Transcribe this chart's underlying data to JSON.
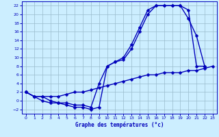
{
  "line1_x": [
    0,
    1,
    2,
    3,
    4,
    5,
    6,
    7,
    8,
    9,
    10,
    11,
    12,
    13,
    14,
    15,
    16,
    17,
    18,
    19,
    20,
    21,
    22,
    23
  ],
  "line1_y": [
    2,
    1,
    0,
    -0.5,
    -0.5,
    -1,
    -1.5,
    -1.5,
    -2,
    -1.5,
    8,
    9,
    10,
    13,
    17,
    21,
    22,
    22,
    22,
    22,
    21,
    8,
    8,
    null
  ],
  "line2_x": [
    0,
    1,
    2,
    3,
    4,
    5,
    6,
    7,
    8,
    9,
    10,
    11,
    12,
    13,
    14,
    15,
    16,
    17,
    18,
    19,
    20,
    21,
    22,
    23
  ],
  "line2_y": [
    2,
    1,
    1,
    0,
    -0.5,
    -0.5,
    -1,
    -1,
    -1.5,
    4,
    8,
    9,
    9.5,
    12,
    16,
    20,
    22,
    22,
    22,
    22,
    19,
    15,
    8,
    null
  ],
  "line3_x": [
    0,
    1,
    2,
    3,
    4,
    5,
    6,
    7,
    8,
    9,
    10,
    11,
    12,
    13,
    14,
    15,
    16,
    17,
    18,
    19,
    20,
    21,
    22,
    23
  ],
  "line3_y": [
    2,
    1,
    1,
    1,
    1,
    1.5,
    2,
    2,
    2.5,
    3,
    3.5,
    4,
    4.5,
    5,
    5.5,
    6,
    6,
    6.5,
    6.5,
    6.5,
    7,
    7,
    7.5,
    8
  ],
  "line_color": "#0000bb",
  "marker": "D",
  "markersize": 2.5,
  "linewidth": 1.0,
  "bg_color": "#cceeff",
  "grid_color": "#99bbcc",
  "xlabel": "Graphe des températures (°c)",
  "xlim": [
    -0.5,
    23.5
  ],
  "ylim": [
    -3,
    23
  ],
  "yticks": [
    -2,
    0,
    2,
    4,
    6,
    8,
    10,
    12,
    14,
    16,
    18,
    20,
    22
  ],
  "xticks": [
    0,
    1,
    2,
    3,
    4,
    5,
    6,
    7,
    8,
    9,
    10,
    11,
    12,
    13,
    14,
    15,
    16,
    17,
    18,
    19,
    20,
    21,
    22,
    23
  ]
}
